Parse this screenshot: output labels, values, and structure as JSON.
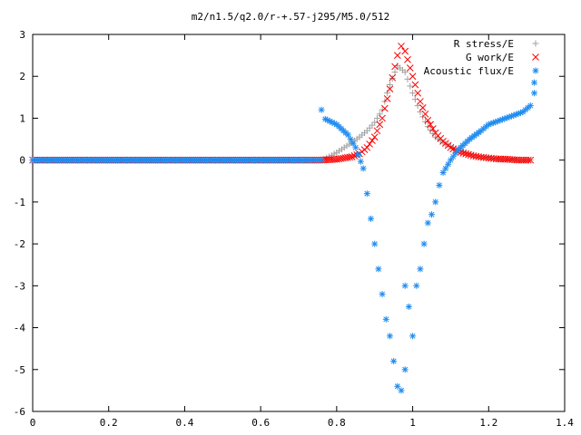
{
  "chart_data": {
    "type": "scatter",
    "title": "m2/n1.5/q2.0/r-+.57-j295/M5.0/512",
    "xlabel": "",
    "ylabel": "",
    "xlim": [
      0,
      1.4
    ],
    "ylim": [
      -6,
      3
    ],
    "x_ticks": [
      "0",
      "0.2",
      "0.4",
      "0.6",
      "0.8",
      "1",
      "1.2",
      "1.4"
    ],
    "y_ticks": [
      "3",
      "2",
      "1",
      "0",
      "-1",
      "-2",
      "-3",
      "-4",
      "-5",
      "-6"
    ],
    "grid": false,
    "legend_position": "top-right",
    "series": [
      {
        "name": "R stress/E",
        "marker": "plus",
        "color": "#a0a0a0",
        "points": [
          [
            0.0,
            0.0
          ],
          [
            0.1,
            0.0
          ],
          [
            0.2,
            0.0
          ],
          [
            0.3,
            0.0
          ],
          [
            0.4,
            0.0
          ],
          [
            0.5,
            0.0
          ],
          [
            0.6,
            0.0
          ],
          [
            0.7,
            0.0
          ],
          [
            0.76,
            0.0
          ],
          [
            0.78,
            0.08
          ],
          [
            0.8,
            0.18
          ],
          [
            0.82,
            0.3
          ],
          [
            0.84,
            0.42
          ],
          [
            0.86,
            0.55
          ],
          [
            0.88,
            0.7
          ],
          [
            0.9,
            0.9
          ],
          [
            0.92,
            1.2
          ],
          [
            0.94,
            1.8
          ],
          [
            0.96,
            2.25
          ],
          [
            0.98,
            2.1
          ],
          [
            1.0,
            1.6
          ],
          [
            1.02,
            1.15
          ],
          [
            1.04,
            0.8
          ],
          [
            1.06,
            0.55
          ],
          [
            1.08,
            0.42
          ],
          [
            1.1,
            0.33
          ],
          [
            1.12,
            0.25
          ],
          [
            1.14,
            0.18
          ],
          [
            1.16,
            0.12
          ],
          [
            1.18,
            0.08
          ],
          [
            1.2,
            0.05
          ],
          [
            1.22,
            0.03
          ],
          [
            1.25,
            0.02
          ],
          [
            1.28,
            0.0
          ],
          [
            1.31,
            0.0
          ]
        ]
      },
      {
        "name": "G work/E",
        "marker": "cross",
        "color": "#ff0000",
        "points": [
          [
            0.0,
            0.0
          ],
          [
            0.1,
            0.0
          ],
          [
            0.2,
            0.0
          ],
          [
            0.3,
            0.0
          ],
          [
            0.4,
            0.0
          ],
          [
            0.5,
            0.0
          ],
          [
            0.6,
            0.0
          ],
          [
            0.7,
            0.0
          ],
          [
            0.76,
            0.0
          ],
          [
            0.8,
            0.02
          ],
          [
            0.84,
            0.08
          ],
          [
            0.86,
            0.15
          ],
          [
            0.88,
            0.3
          ],
          [
            0.9,
            0.55
          ],
          [
            0.92,
            1.0
          ],
          [
            0.94,
            1.7
          ],
          [
            0.96,
            2.5
          ],
          [
            0.97,
            2.72
          ],
          [
            0.98,
            2.6
          ],
          [
            1.0,
            2.0
          ],
          [
            1.02,
            1.4
          ],
          [
            1.04,
            0.95
          ],
          [
            1.06,
            0.65
          ],
          [
            1.08,
            0.45
          ],
          [
            1.1,
            0.3
          ],
          [
            1.12,
            0.2
          ],
          [
            1.14,
            0.15
          ],
          [
            1.16,
            0.1
          ],
          [
            1.18,
            0.07
          ],
          [
            1.2,
            0.05
          ],
          [
            1.22,
            0.03
          ],
          [
            1.25,
            0.02
          ],
          [
            1.28,
            0.0
          ],
          [
            1.31,
            0.0
          ]
        ]
      },
      {
        "name": "Acoustic flux/E",
        "marker": "star",
        "color": "#1e8cf0",
        "points": [
          [
            0.0,
            0.0
          ],
          [
            0.1,
            0.0
          ],
          [
            0.2,
            0.0
          ],
          [
            0.3,
            0.0
          ],
          [
            0.4,
            0.0
          ],
          [
            0.5,
            0.0
          ],
          [
            0.6,
            0.0
          ],
          [
            0.7,
            0.0
          ],
          [
            0.76,
            0.0
          ],
          [
            0.76,
            1.2
          ],
          [
            0.77,
            0.98
          ],
          [
            0.8,
            0.85
          ],
          [
            0.83,
            0.6
          ],
          [
            0.85,
            0.3
          ],
          [
            0.87,
            -0.2
          ],
          [
            0.88,
            -0.8
          ],
          [
            0.89,
            -1.4
          ],
          [
            0.9,
            -2.0
          ],
          [
            0.91,
            -2.6
          ],
          [
            0.92,
            -3.2
          ],
          [
            0.93,
            -3.8
          ],
          [
            0.94,
            -4.2
          ],
          [
            0.95,
            -4.8
          ],
          [
            0.96,
            -5.4
          ],
          [
            0.97,
            -5.5
          ],
          [
            0.98,
            -5.0
          ],
          [
            0.98,
            -3.0
          ],
          [
            0.99,
            -3.5
          ],
          [
            1.0,
            -4.2
          ],
          [
            1.01,
            -3.0
          ],
          [
            1.02,
            -2.6
          ],
          [
            1.03,
            -2.0
          ],
          [
            1.04,
            -1.5
          ],
          [
            1.05,
            -1.3
          ],
          [
            1.06,
            -1.0
          ],
          [
            1.07,
            -0.6
          ],
          [
            1.08,
            -0.3
          ],
          [
            1.1,
            0.0
          ],
          [
            1.12,
            0.25
          ],
          [
            1.15,
            0.5
          ],
          [
            1.18,
            0.7
          ],
          [
            1.2,
            0.85
          ],
          [
            1.23,
            0.95
          ],
          [
            1.26,
            1.05
          ],
          [
            1.29,
            1.15
          ],
          [
            1.31,
            1.3
          ],
          [
            1.32,
            1.6
          ],
          [
            1.32,
            1.85
          ]
        ]
      }
    ]
  }
}
